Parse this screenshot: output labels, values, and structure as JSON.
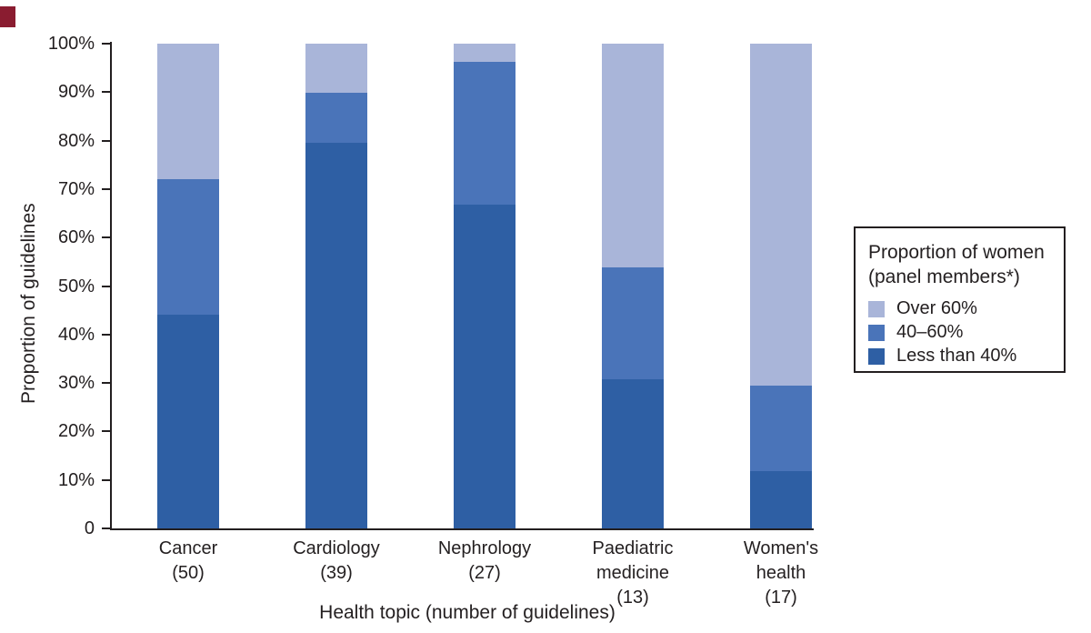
{
  "figure": {
    "y_axis_title": "Proportion of guidelines",
    "x_axis_title": "Health topic (number of guidelines)"
  },
  "legend": {
    "title_line1": "Proportion of women",
    "title_line2": "(panel members*)",
    "items": [
      {
        "label": "Over 60%",
        "color": "#a9b5d9"
      },
      {
        "label": "40–60%",
        "color": "#4a74b9"
      },
      {
        "label": "Less than 40%",
        "color": "#2e5fa4"
      }
    ]
  },
  "corner_mark": {
    "color": "#8a1c30"
  },
  "chart_data": {
    "type": "bar",
    "stacked": true,
    "title": "",
    "xlabel": "Health topic (number of guidelines)",
    "ylabel": "Proportion of guidelines",
    "ylim": [
      0,
      100
    ],
    "grid": false,
    "legend_position": "right",
    "y_tick_labels": [
      "100%",
      "90%",
      "80%",
      "70%",
      "60%",
      "50%",
      "40%",
      "30%",
      "20%",
      "10%",
      "0"
    ],
    "categories": [
      "Cancer (50)",
      "Cardiology (39)",
      "Nephrology (27)",
      "Paediatric medicine (13)",
      "Women's health (17)"
    ],
    "category_label_lines": [
      [
        "Cancer",
        "(50)"
      ],
      [
        "Cardiology",
        "(39)"
      ],
      [
        "Nephrology",
        "(27)"
      ],
      [
        "Paediatric",
        "medicine",
        "(13)"
      ],
      [
        "Women's",
        "health",
        "(17)"
      ]
    ],
    "series": [
      {
        "name": "Less than 40%",
        "color": "#2e5fa4",
        "values": [
          44.0,
          79.5,
          66.7,
          30.8,
          11.8
        ]
      },
      {
        "name": "40–60%",
        "color": "#4a74b9",
        "values": [
          28.0,
          10.3,
          29.6,
          23.1,
          17.6
        ]
      },
      {
        "name": "Over 60%",
        "color": "#a9b5d9",
        "values": [
          28.0,
          10.2,
          3.7,
          46.1,
          70.6
        ]
      }
    ]
  }
}
